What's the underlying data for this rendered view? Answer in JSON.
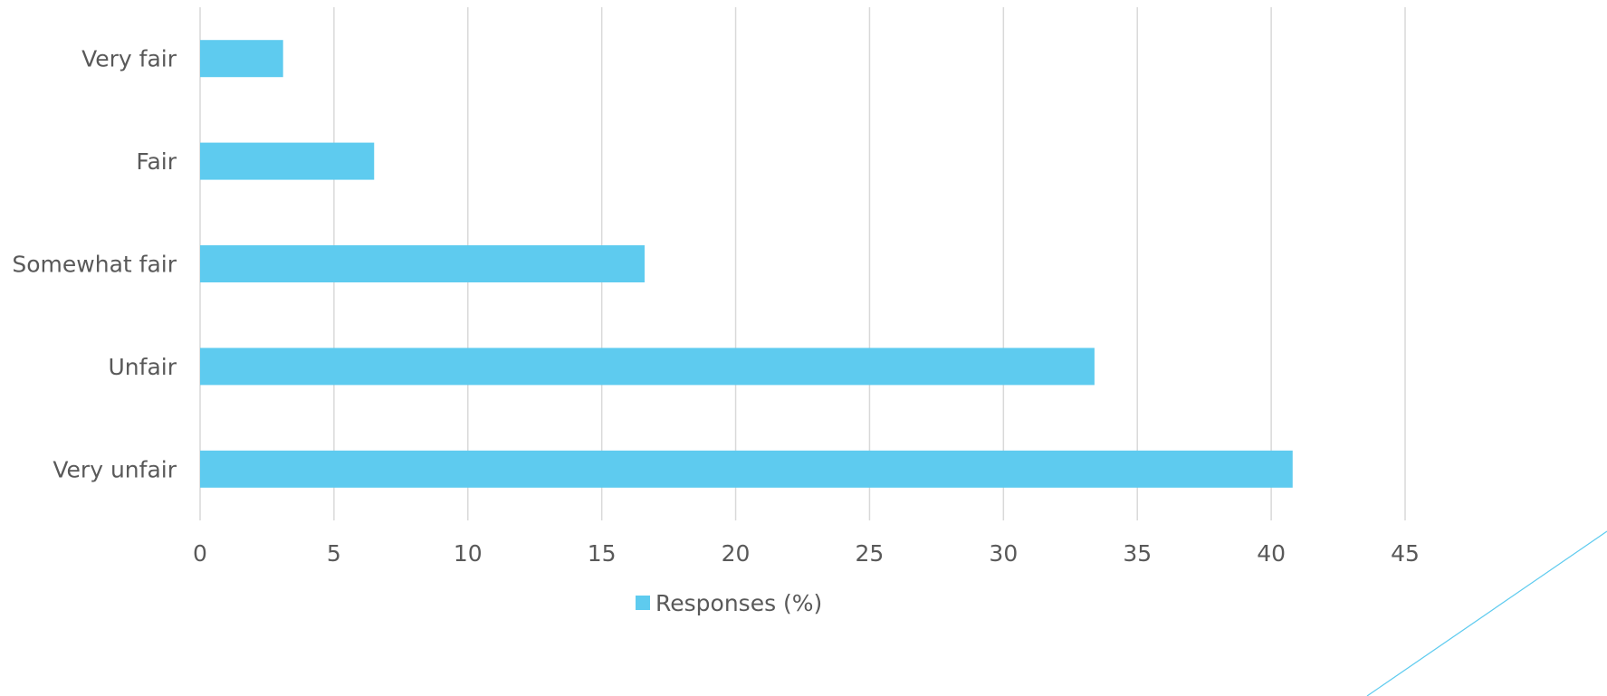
{
  "chart_data": {
    "type": "bar",
    "orientation": "horizontal",
    "categories": [
      "Very fair",
      "Fair",
      "Somewhat fair",
      "Unfair",
      "Very unfair"
    ],
    "series": [
      {
        "name": "Responses (%)",
        "values": [
          3.1,
          6.5,
          16.6,
          33.4,
          40.8
        ],
        "color": "#5ecbef"
      }
    ],
    "xlim": [
      0,
      45
    ],
    "xticks": [
      "0",
      "5",
      "10",
      "15",
      "20",
      "25",
      "30",
      "35",
      "40",
      "45"
    ],
    "grid": true,
    "legend_position": "bottom"
  },
  "legend": {
    "label": "Responses (%)"
  }
}
